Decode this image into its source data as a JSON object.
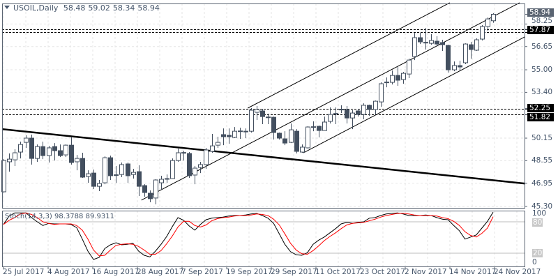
{
  "header": {
    "symbol": "USOIL,Daily",
    "open": "58.48",
    "high": "59.02",
    "low": "58.34",
    "close": "58.94"
  },
  "stoch_header": {
    "label": "Stoch(14,3,3)",
    "k": "98.3788",
    "d": "89.9311"
  },
  "colors": {
    "candle": "#434f5f",
    "bull_fill": "#ffffff",
    "k_line": "#000000",
    "d_line": "#ff0000",
    "grid": "#e6e6e6",
    "axis_text": "#45556a",
    "price_box": "#5a6472",
    "level_box": "#000000"
  },
  "chart_data": [
    {
      "type": "candlestick",
      "symbol": "USOIL",
      "timeframe": "Daily",
      "ylim": [
        45.3,
        59.2
      ],
      "grid": true,
      "y_ticks": [
        "58.25",
        "56.65",
        "55.00",
        "53.40",
        "50.15",
        "48.55",
        "46.95",
        "45.30"
      ],
      "current_price_label": "58.94",
      "level_labels": [
        "57.87",
        "52.25",
        "51.82"
      ],
      "x_ticks": [
        {
          "bar": 0,
          "label": "25 Jul 2017"
        },
        {
          "bar": 8,
          "label": "4 Aug 2017"
        },
        {
          "bar": 16,
          "label": "16 Aug 2017"
        },
        {
          "bar": 24,
          "label": "28 Aug 2017"
        },
        {
          "bar": 32,
          "label": "7 Sep 2017"
        },
        {
          "bar": 40,
          "label": "19 Sep 2017"
        },
        {
          "bar": 48,
          "label": "29 Sep 2017"
        },
        {
          "bar": 56,
          "label": "11 Oct 2017"
        },
        {
          "bar": 64,
          "label": "23 Oct 2017"
        },
        {
          "bar": 72,
          "label": "2 Nov 2017"
        },
        {
          "bar": 80,
          "label": "14 Nov 2017"
        },
        {
          "bar": 88,
          "label": "24 Nov 2017"
        }
      ],
      "ohlc": [
        [
          46.34,
          48.66,
          46.29,
          48.56
        ],
        [
          48.47,
          49.06,
          47.77,
          48.66
        ],
        [
          48.61,
          49.36,
          48.17,
          49.11
        ],
        [
          49.16,
          49.9,
          48.71,
          49.7
        ],
        [
          49.85,
          50.35,
          49.46,
          50.15
        ],
        [
          50.15,
          50.4,
          48.27,
          48.71
        ],
        [
          48.71,
          49.7,
          48.47,
          49.55
        ],
        [
          49.55,
          49.9,
          48.66,
          48.91
        ],
        [
          48.91,
          49.6,
          48.42,
          49.46
        ],
        [
          49.55,
          49.8,
          48.56,
          49.26
        ],
        [
          49.26,
          49.7,
          48.81,
          48.91
        ],
        [
          48.96,
          49.7,
          48.81,
          49.65
        ],
        [
          49.65,
          50.2,
          48.27,
          48.42
        ],
        [
          48.47,
          48.96,
          47.87,
          48.71
        ],
        [
          48.71,
          49.11,
          47.33,
          47.38
        ],
        [
          47.43,
          47.87,
          46.98,
          47.62
        ],
        [
          47.67,
          47.92,
          46.54,
          46.73
        ],
        [
          46.73,
          47.18,
          46.39,
          46.93
        ],
        [
          46.98,
          48.86,
          46.88,
          48.76
        ],
        [
          48.76,
          48.91,
          47.18,
          47.48
        ],
        [
          47.53,
          48.17,
          46.98,
          47.55
        ],
        [
          47.57,
          48.42,
          47.38,
          48.27
        ],
        [
          48.32,
          48.42,
          46.98,
          47.48
        ],
        [
          47.57,
          47.97,
          47.28,
          47.72
        ],
        [
          47.77,
          48.22,
          46.04,
          46.73
        ],
        [
          46.78,
          46.88,
          45.99,
          46.29
        ],
        [
          46.24,
          46.44,
          45.6,
          45.85
        ],
        [
          45.9,
          47.23,
          45.45,
          47.18
        ],
        [
          46.98,
          47.48,
          46.49,
          47.23
        ],
        [
          47.26,
          47.57,
          46.98,
          47.28
        ],
        [
          47.28,
          48.71,
          47.26,
          48.56
        ],
        [
          48.56,
          49.41,
          48.47,
          49.11
        ],
        [
          49.11,
          49.26,
          48.56,
          49.13
        ],
        [
          49.06,
          49.16,
          47.33,
          47.48
        ],
        [
          47.53,
          48.17,
          46.88,
          48.02
        ],
        [
          48.07,
          48.47,
          47.67,
          48.27
        ],
        [
          48.27,
          49.46,
          47.97,
          49.31
        ],
        [
          49.21,
          50.45,
          49.11,
          49.6
        ],
        [
          49.65,
          50.25,
          49.46,
          49.85
        ],
        [
          50.4,
          50.84,
          49.65,
          50.25
        ],
        [
          50.35,
          50.84,
          49.75,
          50.25
        ],
        [
          50.2,
          50.94,
          50.15,
          50.64
        ],
        [
          50.64,
          50.89,
          50.1,
          50.66
        ],
        [
          50.64,
          50.84,
          50.15,
          50.59
        ],
        [
          50.64,
          52.28,
          50.55,
          52.13
        ],
        [
          51.98,
          52.43,
          51.44,
          52.18
        ],
        [
          52.08,
          52.23,
          51.14,
          51.68
        ],
        [
          51.63,
          51.88,
          51.14,
          51.65
        ],
        [
          51.63,
          51.68,
          50.05,
          50.55
        ],
        [
          50.5,
          50.55,
          50.05,
          50.15
        ],
        [
          50.1,
          50.64,
          49.65,
          49.8
        ],
        [
          49.85,
          51.19,
          49.8,
          50.74
        ],
        [
          50.64,
          50.79,
          49.06,
          49.21
        ],
        [
          49.16,
          49.7,
          49.11,
          49.51
        ],
        [
          49.46,
          50.99,
          49.41,
          50.94
        ],
        [
          50.94,
          51.34,
          50.64,
          50.96
        ],
        [
          50.99,
          51.04,
          50.2,
          50.69
        ],
        [
          50.69,
          51.68,
          50.69,
          51.29
        ],
        [
          51.34,
          52.33,
          51.19,
          51.83
        ],
        [
          51.88,
          52.33,
          51.14,
          51.9
        ],
        [
          52.18,
          52.48,
          51.93,
          52.2
        ],
        [
          52.18,
          52.43,
          51.19,
          51.58
        ],
        [
          51.58,
          52.13,
          50.79,
          51.93
        ],
        [
          52.08,
          52.23,
          51.68,
          51.83
        ],
        [
          51.83,
          52.62,
          51.49,
          52.48
        ],
        [
          52.48,
          52.53,
          51.73,
          52.18
        ],
        [
          52.18,
          52.82,
          51.83,
          52.77
        ],
        [
          52.72,
          54.11,
          52.38,
          54.01
        ],
        [
          54.11,
          54.46,
          53.76,
          54.13
        ],
        [
          54.11,
          54.95,
          53.96,
          54.6
        ],
        [
          54.6,
          55.2,
          53.86,
          54.26
        ],
        [
          54.31,
          54.85,
          54.01,
          54.75
        ],
        [
          54.7,
          55.79,
          54.41,
          55.69
        ],
        [
          55.94,
          57.62,
          55.69,
          57.28
        ],
        [
          57.28,
          57.62,
          56.83,
          56.98
        ],
        [
          56.93,
          57.97,
          56.44,
          56.95
        ],
        [
          56.88,
          57.53,
          56.78,
          57.08
        ],
        [
          57.03,
          57.38,
          56.68,
          56.83
        ],
        [
          56.93,
          57.13,
          56.34,
          56.78
        ],
        [
          56.73,
          56.78,
          54.8,
          55.0
        ],
        [
          55.0,
          55.59,
          54.9,
          55.3
        ],
        [
          55.3,
          55.64,
          54.95,
          55.2
        ],
        [
          55.5,
          56.88,
          55.4,
          56.83
        ],
        [
          56.78,
          56.98,
          55.79,
          56.44
        ],
        [
          56.39,
          57.23,
          56.34,
          57.13
        ],
        [
          57.18,
          58.17,
          57.08,
          58.07
        ],
        [
          58.07,
          58.71,
          57.77,
          58.61
        ],
        [
          58.48,
          59.02,
          58.34,
          58.94
        ]
      ],
      "horizontal_levels": [
        57.87,
        57.67,
        52.25,
        51.82
      ],
      "trendlines": [
        {
          "kind": "descending-trendline",
          "from": {
            "bar": -0.25,
            "price": 50.79
          },
          "to": {
            "bar": 92.6,
            "price": 46.93
          }
        },
        {
          "kind": "channel-upper",
          "from": {
            "bar": 43.4,
            "price": 52.28
          },
          "to": {
            "bar": 79.3,
            "price": 59.76
          }
        },
        {
          "kind": "channel-middle",
          "from": {
            "bar": 24.5,
            "price": 45.75
          },
          "to": {
            "bar": 91.7,
            "price": 59.76
          }
        },
        {
          "kind": "channel-lower",
          "from": {
            "bar": 53.3,
            "price": 49.11
          },
          "to": {
            "bar": 92.6,
            "price": 57.33
          }
        }
      ]
    },
    {
      "type": "line",
      "indicator": "Stoch(14,3,3)",
      "ylim": [
        0,
        100
      ],
      "y_ticks": [
        "100",
        "80",
        "20",
        "0"
      ],
      "levels": [
        80,
        20
      ],
      "series": [
        {
          "name": "98.3788",
          "values": [
            75,
            91,
            97,
            97,
            97,
            88,
            80,
            73,
            77,
            76,
            76,
            76,
            75,
            69,
            47,
            24,
            8,
            12,
            29,
            36,
            40,
            36,
            37,
            39,
            24,
            16,
            13,
            24,
            37,
            52,
            71,
            88,
            83,
            72,
            64,
            75,
            84,
            87,
            88,
            89,
            91,
            92,
            92,
            93,
            95,
            96,
            92,
            87,
            77,
            57,
            37,
            23,
            17,
            16,
            21,
            37,
            45,
            51,
            59,
            67,
            76,
            79,
            77,
            79,
            80,
            87,
            88,
            92,
            95,
            96,
            97,
            95,
            92,
            92,
            92,
            93,
            92,
            88,
            85,
            84,
            73,
            63,
            47,
            51,
            55,
            68,
            81,
            98.38
          ]
        },
        {
          "name": "89.9311",
          "values": [
            75,
            83,
            88,
            95,
            97,
            94,
            88,
            80,
            77,
            75,
            76,
            76,
            76,
            73,
            64,
            47,
            26,
            15,
            16,
            26,
            35,
            37,
            38,
            37,
            33,
            26,
            18,
            18,
            25,
            38,
            53,
            70,
            81,
            81,
            73,
            70,
            74,
            82,
            86,
            88,
            89,
            91,
            92,
            92,
            93,
            95,
            94,
            92,
            85,
            74,
            57,
            39,
            26,
            19,
            18,
            25,
            34,
            44,
            52,
            59,
            67,
            74,
            77,
            78,
            79,
            82,
            85,
            89,
            92,
            94,
            96,
            96,
            95,
            93,
            92,
            92,
            92,
            91,
            88,
            86,
            81,
            73,
            61,
            54,
            51,
            58,
            68,
            89.93
          ]
        }
      ]
    }
  ]
}
